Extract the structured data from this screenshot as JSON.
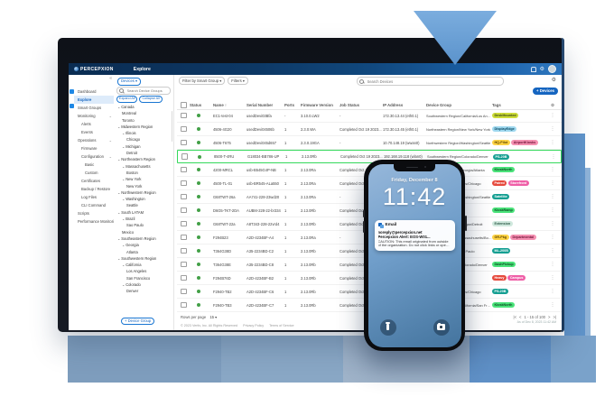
{
  "colors": {
    "accent_blue": "#1565c0",
    "topbar_navy": "#0d3865",
    "highlight_green": "#35d95c",
    "status_green": "#43a047",
    "band_blue": "#7e9dbd"
  },
  "topbar": {
    "app_name": "PERCEPXION",
    "page_title": "Explore",
    "icons": [
      "bell-icon",
      "gear-icon",
      "avatar"
    ]
  },
  "sidebar": {
    "collapse_icon": "«",
    "items": [
      {
        "label": "Dashboard",
        "level": 0
      },
      {
        "label": "Explore",
        "level": 0,
        "active": true
      },
      {
        "label": "Smart Groups",
        "level": 0
      },
      {
        "label": "Monitoring",
        "level": 0,
        "chev": true
      },
      {
        "label": "Alerts",
        "level": 1
      },
      {
        "label": "Events",
        "level": 1
      },
      {
        "label": "Operations",
        "level": 0,
        "chev": true
      },
      {
        "label": "Firmware",
        "level": 1
      },
      {
        "label": "Configuration",
        "level": 1,
        "chev": true
      },
      {
        "label": "Basic",
        "level": 2
      },
      {
        "label": "Custom",
        "level": 2
      },
      {
        "label": "Certificates",
        "level": 1
      },
      {
        "label": "Backup / Restore",
        "level": 1
      },
      {
        "label": "Log Files",
        "level": 1
      },
      {
        "label": "CLI Command",
        "level": 1
      },
      {
        "label": "Scripts",
        "level": 0
      },
      {
        "label": "Performance Monitoring",
        "level": 0
      }
    ]
  },
  "groups_panel": {
    "devices_button": "Devices ▾",
    "search_placeholder": "Search Device Groups",
    "expand_all": "Expand All",
    "collapse_all": "Collapse All",
    "add_button": "+ Device Group",
    "tree": [
      {
        "label": "Canada",
        "level": 0,
        "chev": true
      },
      {
        "label": "Montreal",
        "level": 1
      },
      {
        "label": "Toronto",
        "level": 1
      },
      {
        "label": "Midwestern Region",
        "level": 0,
        "chev": true
      },
      {
        "label": "Illinois",
        "level": 1,
        "chev": true
      },
      {
        "label": "Chicago",
        "level": 2
      },
      {
        "label": "Michigan",
        "level": 1,
        "chev": true
      },
      {
        "label": "Detroit",
        "level": 2
      },
      {
        "label": "Northeastern Region",
        "level": 0,
        "chev": true
      },
      {
        "label": "Massachusetts",
        "level": 1,
        "chev": true
      },
      {
        "label": "Boston",
        "level": 2
      },
      {
        "label": "New York",
        "level": 1,
        "chev": true
      },
      {
        "label": "New York",
        "level": 2
      },
      {
        "label": "Northwestern Region",
        "level": 0,
        "chev": true
      },
      {
        "label": "Washington",
        "level": 1,
        "chev": true
      },
      {
        "label": "Seattle",
        "level": 2
      },
      {
        "label": "South LATAM",
        "level": 0,
        "chev": true
      },
      {
        "label": "Brazil",
        "level": 1,
        "chev": true
      },
      {
        "label": "Sao Paulo",
        "level": 2
      },
      {
        "label": "Mexico",
        "level": 1
      },
      {
        "label": "Southeastern Region",
        "level": 0,
        "chev": true
      },
      {
        "label": "Georgia",
        "level": 1,
        "chev": true
      },
      {
        "label": "Atlanta",
        "level": 2
      },
      {
        "label": "Southwestern Region",
        "level": 0,
        "chev": true
      },
      {
        "label": "California",
        "level": 1,
        "chev": true
      },
      {
        "label": "Los Angeles",
        "level": 2
      },
      {
        "label": "San Francisco",
        "level": 2
      },
      {
        "label": "Colorado",
        "level": 1,
        "chev": true
      },
      {
        "label": "Denver",
        "level": 2
      }
    ]
  },
  "toolbar": {
    "filter_smart_group": "Filter by Smart Group ▾",
    "filters": "Filters ▾",
    "search_placeholder": "Search Devices",
    "add_devices": "+ Devices"
  },
  "table": {
    "columns": [
      "",
      "Status",
      "Name",
      "Serial Number",
      "Ports",
      "Firmware Version",
      "Job Status",
      "IP Address",
      "Device Group",
      "Tags",
      ""
    ],
    "sort_column": "Name",
    "sort_arrow": "↑",
    "rows": [
      {
        "name": "EC1-test-04",
        "serial": "usedDevi03Bfa",
        "ports": "-",
        "firmware": "3.10.0.LW2",
        "job_status": "-",
        "ip_address": "172.30.13.44 (eth0.1)",
        "device_group": "Southwestern Region/California/Los Angeles",
        "tags": [
          {
            "label": "DeskMounted",
            "bg": "#cddc39",
            "fg": "#3a4a10"
          }
        ]
      },
      {
        "name": "4506-4G20",
        "serial": "usedDevi04506b",
        "ports": "1",
        "firmware": "2.3.0.WA",
        "job_status": "Completed Oct 19 2023...",
        "ip_address": "172.30.13.45 (eth0.1)",
        "device_group": "Northeastern Region/New York/New York",
        "tags": [
          {
            "label": "DisplayEdge",
            "bg": "#9fd8ef",
            "fg": "#0b4a63"
          }
        ]
      },
      {
        "name": "4506-T675",
        "serial": "usedDevi045d657",
        "ports": "1",
        "firmware": "2.3.0.19GA",
        "job_status": "-",
        "ip_address": "10.70.148.19 (wwan0)",
        "device_group": "Northwestern Region/Washington/Seattle",
        "tags": [
          {
            "label": "HQ-Pilot",
            "bg": "#fdd244",
            "fg": "#5f4700"
          },
          {
            "label": "AirportKiosks",
            "bg": "#f48fb1",
            "fg": "#701438"
          }
        ]
      },
      {
        "highlighted": true,
        "name": "8500-T-4RU",
        "serial": "G18034-BB786-UP",
        "ports": "1",
        "firmware": "2.13.0Rb",
        "job_status": "Completed Oct 19 2023...",
        "ip_address": "192.168.19.118 (wlan0)",
        "device_group": "Southwestern Region/Colorado/Denver",
        "tags": [
          {
            "label": "PS-20B",
            "bg": "#159f92",
            "fg": "#ffffff"
          }
        ]
      },
      {
        "name": "4200-MRCL",
        "serial": "usb-B545G4P-NB",
        "ports": "1",
        "firmware": "2.13.0Ra",
        "job_status": "Completed Oct 19 2023...",
        "ip_address": "172.30.14.02 (eth0)",
        "device_group": "Southeastern Region/Georgia/Atlanta",
        "tags": [
          {
            "label": "KioskNorth",
            "bg": "#4ae37a",
            "fg": "#0c4a22"
          }
        ]
      },
      {
        "name": "4500-TL-01",
        "serial": "usb-BR545-ALa550",
        "ports": "1",
        "firmware": "2.13.0Ra",
        "job_status": "Completed Oct 19 2023...",
        "ip_address": "172.30.14.11 (eth0)",
        "device_group": "Midwestern Region/Illinois/Chicago",
        "tags": [
          {
            "label": "Paired",
            "bg": "#e64a3d",
            "fg": "#ffffff"
          },
          {
            "label": "Storefront",
            "bg": "#ef5fa7",
            "fg": "#ffffff"
          }
        ]
      },
      {
        "name": "G68TWT-26a",
        "serial": "AA741-228-23wd20",
        "ports": "1",
        "firmware": "2.13.0Ra",
        "job_status": "-",
        "ip_address": "10.70.148.22 (wwan0)",
        "device_group": "Northwestern Region/Washington/Seattle",
        "tags": [
          {
            "label": "Satellite",
            "bg": "#159f92",
            "fg": "#ffffff"
          }
        ]
      },
      {
        "name": "D6G5-TKT-2DA",
        "serial": "AUBM-228-22-br334",
        "ports": "1",
        "firmware": "2.13.0Rb",
        "job_status": "Completed Oct 19 2023...",
        "ip_address": "172.30.15.08 (eth0)",
        "device_group": "Canada/Montreal",
        "tags": [
          {
            "label": "KioskRamp",
            "bg": "#4ae37a",
            "fg": "#0c4a22"
          }
        ]
      },
      {
        "name": "G68TWT-22a",
        "serial": "A8T343-228-22vrd4",
        "ports": "1",
        "firmware": "2.13.0Rb",
        "job_status": "Completed Oct 19 2023...",
        "ip_address": "172.30.15.21 (eth0)",
        "device_group": "Midwestern Region/Michigan/Detroit",
        "tags": [
          {
            "label": "Extension",
            "bg": "#cfe8dd",
            "fg": "#2f5c49"
          }
        ]
      },
      {
        "name": "F294B23",
        "serial": "A2D-4234BF-A4",
        "ports": "1",
        "firmware": "2.13.0Ra",
        "job_status": "-",
        "ip_address": "10.70.149.02 (wwan0)",
        "device_group": "Northeastern Region/Massachusetts/Boston",
        "tags": [
          {
            "label": "GR-Pkg",
            "bg": "#fdd244",
            "fg": "#5f4700"
          },
          {
            "label": "Departmental",
            "bg": "#f48fb1",
            "fg": "#701438"
          }
        ]
      },
      {
        "name": "T364G38D",
        "serial": "A35-2234BD-C2",
        "ports": "1",
        "firmware": "2.13.0Rb",
        "job_status": "Completed Oct 19 2023...",
        "ip_address": "172.30.16.14 (eth0)",
        "device_group": "South LATAM/Brazil/Sao Paulo",
        "tags": [
          {
            "label": "ML-200B",
            "bg": "#159f92",
            "fg": "#ffffff"
          }
        ]
      },
      {
        "name": "T364G38E",
        "serial": "A35-2234BD-C8",
        "ports": "1",
        "firmware": "2.13.0Rb",
        "job_status": "Completed Oct 19 2023...",
        "ip_address": "172.30.16.15 (eth0)",
        "device_group": "Southwestern Region/Colorado/Denver",
        "tags": [
          {
            "label": "DashPickup",
            "bg": "#4ae37a",
            "fg": "#0c4a22"
          }
        ]
      },
      {
        "name": "F294B76D",
        "serial": "A2D-4234BF-B2",
        "ports": "1",
        "firmware": "2.13.0Rb",
        "job_status": "Completed Oct 19 2023...",
        "ip_address": "172.30.16.22 (eth0)",
        "device_group": "Canada/Toronto",
        "tags": [
          {
            "label": "Heavy",
            "bg": "#e64a3d",
            "fg": "#ffffff"
          },
          {
            "label": "Campus",
            "bg": "#ef5fa7",
            "fg": "#ffffff"
          }
        ]
      },
      {
        "name": "F2940-TB2",
        "serial": "A2D-4234BF-C6",
        "ports": "1",
        "firmware": "2.13.0Rb",
        "job_status": "Completed Oct 19 2023...",
        "ip_address": "172.30.17.04 (eth0)",
        "device_group": "Midwestern Region/Illinois/Chicago",
        "tags": [
          {
            "label": "PS-20B",
            "bg": "#159f92",
            "fg": "#ffffff"
          }
        ]
      },
      {
        "name": "F2940-TB3",
        "serial": "A2D-4234BF-C7",
        "ports": "1",
        "firmware": "2.13.0Rb",
        "job_status": "Completed Oct 19 2023...",
        "ip_address": "172.30.17.05 (eth0)",
        "device_group": "Southwestern Region/California/San Francisco",
        "tags": [
          {
            "label": "KioskNorth",
            "bg": "#4ae37a",
            "fg": "#0c4a22"
          }
        ]
      }
    ],
    "rows_per_page_label": "Rows per page",
    "rows_per_page": "15 ▾",
    "pager": {
      "first": "|<",
      "prev": "<",
      "range": "1 - 15 of 100",
      "next": ">",
      "last": ">|"
    },
    "as_of": "As of Dec 8, 2023 11:42 AM"
  },
  "footer": {
    "copyright": "© 2023 Vertiv, Inc. All Rights Reserved",
    "privacy": "Privacy Policy",
    "terms": "Terms of Service"
  },
  "phone": {
    "date": "Friday, December 8",
    "time": "11:42",
    "notification": {
      "app": "Email",
      "sender": "noreply@percepxion.net",
      "subject": "Percepxion Alert: EOS-W01...",
      "body": "CAUTION: This email originated from outside of the organization. Do not click links or open attachm..."
    }
  }
}
